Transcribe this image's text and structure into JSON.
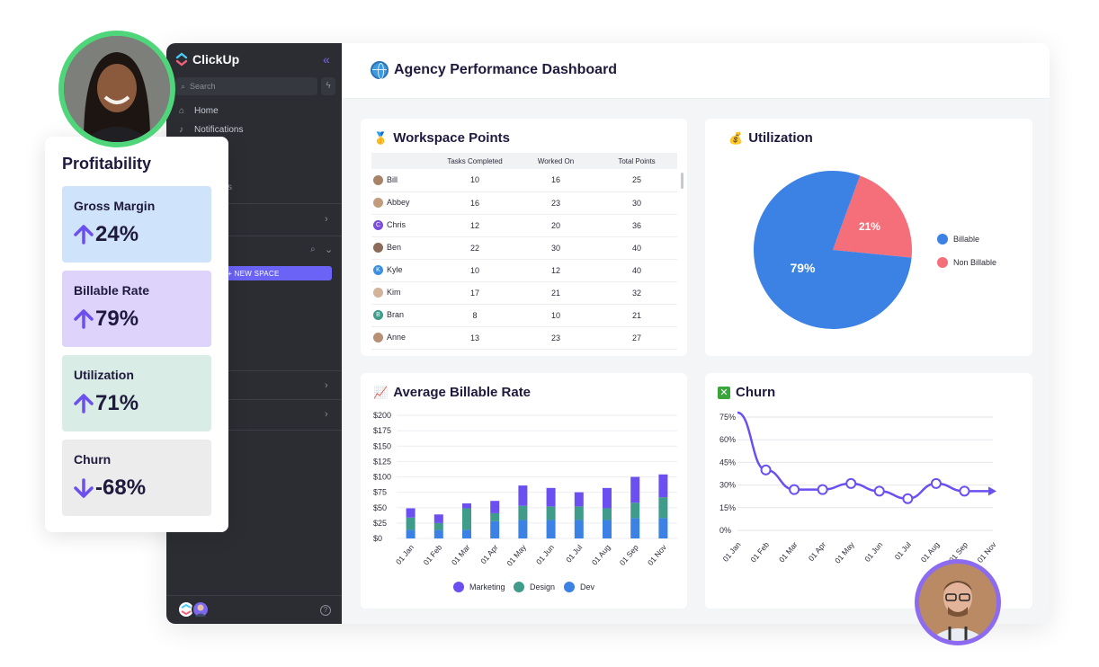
{
  "app": {
    "brand": "ClickUp",
    "search_placeholder": "Search",
    "nav": [
      {
        "label": "Home",
        "icon": "home-icon"
      },
      {
        "label": "Notifications",
        "icon": "bell-icon"
      }
    ],
    "sidebar_fragments": [
      "s",
      "ng"
    ],
    "new_space_label": "+ NEW SPACE",
    "help_label": "?"
  },
  "dashboard": {
    "title": "Agency Performance Dashboard",
    "icon": "globe-icon"
  },
  "workspace_points": {
    "title": "Workspace Points",
    "icon": "medal-icon",
    "columns": [
      "",
      "Tasks Completed",
      "Worked On",
      "Total Points"
    ],
    "rows": [
      {
        "name": "Bill",
        "tasks": "10",
        "worked": "16",
        "total": "25",
        "color": "#a9826a",
        "initial": ""
      },
      {
        "name": "Abbey",
        "tasks": "16",
        "worked": "23",
        "total": "30",
        "color": "#c29a7c",
        "initial": ""
      },
      {
        "name": "Chris",
        "tasks": "12",
        "worked": "20",
        "total": "36",
        "color": "#7b4ddc",
        "initial": "C"
      },
      {
        "name": "Ben",
        "tasks": "22",
        "worked": "30",
        "total": "40",
        "color": "#8c6b58",
        "initial": ""
      },
      {
        "name": "Kyle",
        "tasks": "10",
        "worked": "12",
        "total": "40",
        "color": "#3b8fe0",
        "initial": "K"
      },
      {
        "name": "Kim",
        "tasks": "17",
        "worked": "21",
        "total": "32",
        "color": "#d1b49a",
        "initial": ""
      },
      {
        "name": "Bran",
        "tasks": "8",
        "worked": "10",
        "total": "21",
        "color": "#3f9b8a",
        "initial": "B"
      },
      {
        "name": "Anne",
        "tasks": "13",
        "worked": "23",
        "total": "27",
        "color": "#b88f77",
        "initial": ""
      }
    ]
  },
  "profitability": {
    "title": "Profitability",
    "kpis": [
      {
        "label": "Gross Margin",
        "value": "24%",
        "direction": "up",
        "bg": "#cfe3fb"
      },
      {
        "label": "Billable Rate",
        "value": "79%",
        "direction": "up",
        "bg": "#ddd3fb"
      },
      {
        "label": "Utilization",
        "value": "71%",
        "direction": "up",
        "bg": "#d9ece6"
      },
      {
        "label": "Churn",
        "value": "-68%",
        "direction": "down",
        "bg": "#ececec"
      }
    ],
    "arrow_color": "#6b4ff0"
  },
  "chart_data": [
    {
      "id": "utilization",
      "type": "pie",
      "title": "Utilization",
      "icon": "money-bag-icon",
      "slices": [
        {
          "name": "Billable",
          "value": 79,
          "label": "79%",
          "color": "#3b82e4"
        },
        {
          "name": "Non Billable",
          "value": 21,
          "label": "21%",
          "color": "#f46f7a"
        }
      ],
      "legend": "right"
    },
    {
      "id": "avg-billable-rate",
      "type": "bar",
      "stacked": true,
      "title": "Average Billable Rate",
      "icon": "chart-increasing-icon",
      "categories": [
        "01 Jan",
        "01 Feb",
        "01 Mar",
        "01 Apr",
        "01 May",
        "01 Jun",
        "01 Jul",
        "01 Aug",
        "01 Sep",
        "01 Nov"
      ],
      "series": [
        {
          "name": "Dev",
          "color": "#3b82e4",
          "values": [
            14,
            14,
            14,
            28,
            30,
            30,
            30,
            30,
            33,
            33
          ]
        },
        {
          "name": "Design",
          "color": "#3f9b8a",
          "values": [
            20,
            11,
            35,
            13,
            23,
            22,
            22,
            19,
            25,
            34
          ]
        },
        {
          "name": "Marketing",
          "color": "#6b4ff0",
          "values": [
            15,
            14,
            8,
            20,
            33,
            30,
            23,
            33,
            42,
            37
          ]
        }
      ],
      "yticks": [
        "$0",
        "$25",
        "$50",
        "$75",
        "$100",
        "$125",
        "$150",
        "$175",
        "$200"
      ],
      "ylim": [
        0,
        200
      ],
      "legend_order": [
        "Marketing",
        "Design",
        "Dev"
      ],
      "legend": "bottom",
      "grid": true
    },
    {
      "id": "churn",
      "type": "line",
      "title": "Churn",
      "icon": "cross-mark-icon",
      "categories": [
        "01 Jan",
        "01 Feb",
        "01 Mar",
        "01 Apr",
        "01 May",
        "01 Jun",
        "01 Jul",
        "01 Aug",
        "01 Sep",
        "01 Nov"
      ],
      "series": [
        {
          "color": "#6b4ff0",
          "values": [
            78,
            40,
            27,
            27,
            31,
            26,
            21,
            31,
            26,
            26
          ]
        }
      ],
      "yticks": [
        "0%",
        "15%",
        "30%",
        "45%",
        "60%",
        "75%"
      ],
      "ylim": [
        0,
        75
      ],
      "grid": true
    }
  ]
}
